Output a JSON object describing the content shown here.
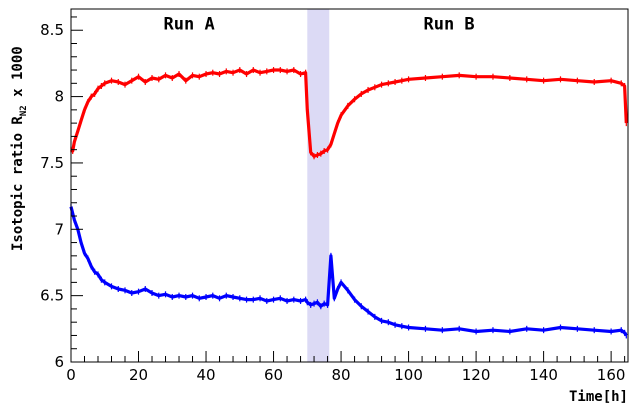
{
  "chart_data": {
    "type": "line",
    "title": "",
    "xlabel": "Time[h]",
    "ylabel": {
      "main": "Isotopic ratio R",
      "subscript": "N2",
      "suffix": " x 1000"
    },
    "xlim": [
      0,
      165
    ],
    "ylim": [
      6,
      8.66
    ],
    "x_ticks": [
      0,
      20,
      40,
      60,
      80,
      100,
      120,
      140,
      160
    ],
    "y_ticks": [
      6,
      6.5,
      7,
      7.5,
      8,
      8.5
    ],
    "grid": false,
    "legend": "none",
    "annotations": [
      {
        "text": "Run A",
        "x": 35,
        "y": 8.55
      },
      {
        "text": "Run B",
        "x": 112,
        "y": 8.55
      }
    ],
    "highlight_band": {
      "x": [
        70,
        76.5
      ],
      "color": "#dcdaf5"
    },
    "series": [
      {
        "color": "#ff0000",
        "x": [
          0,
          0.5,
          1,
          2,
          3,
          4,
          5,
          6,
          7,
          8,
          9,
          10,
          12,
          14,
          16,
          18,
          20,
          22,
          24,
          26,
          28,
          30,
          32,
          34,
          36,
          38,
          40,
          42,
          44,
          46,
          48,
          50,
          52,
          54,
          56,
          58,
          60,
          62,
          64,
          66,
          68,
          69.5,
          70,
          71,
          72,
          73,
          74,
          75,
          76,
          77,
          78,
          79,
          80,
          82,
          84,
          86,
          88,
          90,
          92,
          94,
          96,
          98,
          100,
          105,
          110,
          115,
          120,
          125,
          130,
          135,
          140,
          145,
          150,
          155,
          160,
          163,
          164,
          164.5
        ],
        "y": [
          7.6,
          7.59,
          7.66,
          7.74,
          7.82,
          7.9,
          7.96,
          8.0,
          8.02,
          8.06,
          8.08,
          8.1,
          8.12,
          8.11,
          8.09,
          8.12,
          8.15,
          8.11,
          8.14,
          8.13,
          8.16,
          8.14,
          8.17,
          8.12,
          8.16,
          8.15,
          8.17,
          8.18,
          8.17,
          8.19,
          8.18,
          8.2,
          8.17,
          8.2,
          8.18,
          8.19,
          8.2,
          8.2,
          8.19,
          8.2,
          8.17,
          8.18,
          7.9,
          7.58,
          7.55,
          7.56,
          7.57,
          7.59,
          7.6,
          7.64,
          7.72,
          7.8,
          7.86,
          7.93,
          7.98,
          8.02,
          8.05,
          8.07,
          8.09,
          8.1,
          8.11,
          8.12,
          8.13,
          8.14,
          8.15,
          8.16,
          8.15,
          8.15,
          8.14,
          8.13,
          8.12,
          8.13,
          8.12,
          8.11,
          8.12,
          8.1,
          8.08,
          7.8
        ]
      },
      {
        "color": "#0000ff",
        "x": [
          0,
          0.5,
          1,
          2,
          3,
          4,
          5,
          6,
          7,
          8,
          9,
          10,
          12,
          14,
          16,
          18,
          20,
          22,
          24,
          26,
          28,
          30,
          32,
          34,
          36,
          38,
          40,
          42,
          44,
          46,
          48,
          50,
          52,
          54,
          56,
          58,
          60,
          62,
          64,
          66,
          68,
          69.5,
          70,
          71,
          72,
          73,
          74,
          75,
          76,
          77,
          78,
          79,
          80,
          82,
          84,
          86,
          88,
          90,
          92,
          94,
          96,
          98,
          100,
          105,
          110,
          115,
          120,
          125,
          130,
          135,
          140,
          145,
          150,
          155,
          160,
          163,
          164,
          164.5
        ],
        "y": [
          7.17,
          7.12,
          7.07,
          7.0,
          6.9,
          6.82,
          6.78,
          6.72,
          6.68,
          6.66,
          6.62,
          6.6,
          6.57,
          6.55,
          6.54,
          6.52,
          6.53,
          6.55,
          6.52,
          6.5,
          6.51,
          6.49,
          6.5,
          6.49,
          6.5,
          6.48,
          6.49,
          6.5,
          6.48,
          6.5,
          6.49,
          6.48,
          6.47,
          6.47,
          6.48,
          6.46,
          6.47,
          6.48,
          6.46,
          6.47,
          6.46,
          6.47,
          6.45,
          6.43,
          6.44,
          6.45,
          6.42,
          6.44,
          6.43,
          6.8,
          6.48,
          6.55,
          6.6,
          6.54,
          6.47,
          6.42,
          6.38,
          6.34,
          6.31,
          6.3,
          6.28,
          6.27,
          6.26,
          6.25,
          6.24,
          6.25,
          6.23,
          6.24,
          6.23,
          6.25,
          6.24,
          6.26,
          6.25,
          6.24,
          6.23,
          6.24,
          6.22,
          6.2
        ]
      }
    ]
  }
}
